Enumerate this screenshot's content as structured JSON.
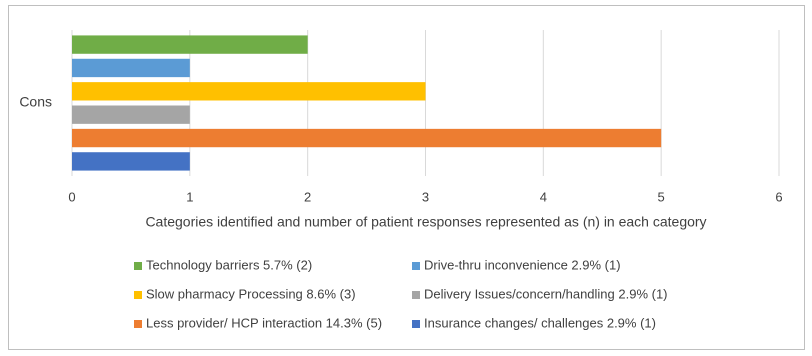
{
  "chart_data": {
    "type": "bar",
    "orientation": "horizontal",
    "categories": [
      "Cons"
    ],
    "series": [
      {
        "name": "Technology barriers 5.7% (2)",
        "color": "#70ad47",
        "values": [
          2
        ]
      },
      {
        "name": "Drive-thru inconvenience 2.9% (1)",
        "color": "#5b9bd5",
        "values": [
          1
        ]
      },
      {
        "name": "Slow pharmacy Processing 8.6% (3)",
        "color": "#ffc000",
        "values": [
          3
        ]
      },
      {
        "name": "Delivery Issues/concern/handling 2.9% (1)",
        "color": "#a5a5a5",
        "values": [
          1
        ]
      },
      {
        "name": "Less provider/ HCP interaction 14.3% (5)",
        "color": "#ed7d31",
        "values": [
          5
        ]
      },
      {
        "name": "Insurance changes/ challenges 2.9% (1)",
        "color": "#4472c4",
        "values": [
          1
        ]
      }
    ],
    "xlim": [
      0,
      6
    ],
    "xticks": [
      0,
      1,
      2,
      3,
      4,
      5,
      6
    ],
    "x_label": "Categories identified and number of patient responses represented as (n) in each category",
    "grid": true,
    "legend": "bottom"
  }
}
